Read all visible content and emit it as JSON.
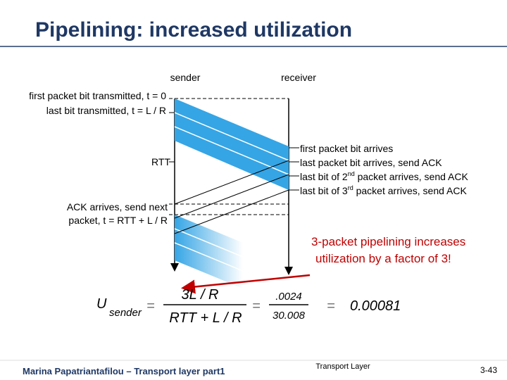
{
  "title": "Pipelining: increased utilization",
  "diagram": {
    "sender": "sender",
    "receiver": "receiver",
    "left_labels": [
      "first packet bit transmitted, t = 0",
      "last bit transmitted, t = L / R"
    ],
    "rtt": "RTT",
    "ack_arrives": [
      "ACK arrives, send next",
      "packet, t = RTT + L / R"
    ],
    "right_labels": {
      "first": "first packet bit arrives",
      "last": "last packet bit arrives, send ACK",
      "second": [
        "last bit of 2",
        "nd",
        " packet arrives, send ACK"
      ],
      "third": [
        "last bit of 3",
        "rd",
        " packet arrives, send ACK"
      ]
    }
  },
  "callout": [
    "3-packet pipelining increases",
    "utilization by a factor of 3!"
  ],
  "formula": {
    "u": "U",
    "sub": "sender",
    "eq1": "=",
    "num": "3L / R",
    "den": "RTT + L / R",
    "eq2": "=",
    "num2": ".0024",
    "den2": "30.008",
    "eq3": "=",
    "result": "0.00081"
  },
  "footer": {
    "left": "Marina Papatriantafilou –  Transport layer part1",
    "center": "Transport Layer",
    "right": "3-43"
  }
}
